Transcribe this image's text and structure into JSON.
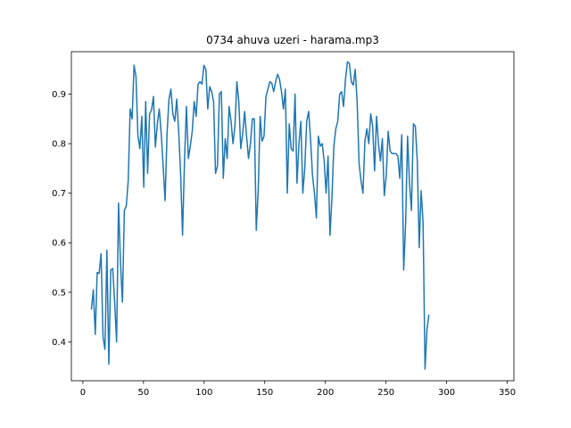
{
  "chart_data": {
    "type": "line",
    "title": "0734 ahuva uzeri - harama.mp3",
    "xlabel": "",
    "ylabel": "",
    "xlim": [
      -9.5,
      355.5
    ],
    "ylim": [
      0.3215,
      0.9855
    ],
    "x_ticks": [
      0,
      50,
      100,
      150,
      200,
      250,
      300,
      350
    ],
    "y_ticks": [
      0.4,
      0.5,
      0.6,
      0.7,
      0.8,
      0.9
    ],
    "grid": false,
    "line_color": "#1f77b4",
    "series": [
      {
        "x_start": 7,
        "x_step": 1.6,
        "values": [
          0.465,
          0.505,
          0.415,
          0.54,
          0.538,
          0.578,
          0.41,
          0.385,
          0.585,
          0.355,
          0.545,
          0.548,
          0.48,
          0.4,
          0.68,
          0.56,
          0.48,
          0.665,
          0.675,
          0.725,
          0.87,
          0.85,
          0.958,
          0.935,
          0.815,
          0.79,
          0.855,
          0.712,
          0.885,
          0.74,
          0.86,
          0.868,
          0.895,
          0.793,
          0.84,
          0.87,
          0.82,
          0.755,
          0.685,
          0.82,
          0.89,
          0.91,
          0.86,
          0.845,
          0.89,
          0.825,
          0.74,
          0.615,
          0.765,
          0.875,
          0.77,
          0.795,
          0.825,
          0.885,
          0.855,
          0.92,
          0.925,
          0.92,
          0.958,
          0.95,
          0.87,
          0.915,
          0.905,
          0.885,
          0.74,
          0.755,
          0.9,
          0.905,
          0.73,
          0.81,
          0.77,
          0.875,
          0.845,
          0.8,
          0.835,
          0.925,
          0.885,
          0.79,
          0.82,
          0.865,
          0.815,
          0.77,
          0.8,
          0.85,
          0.85,
          0.625,
          0.705,
          0.855,
          0.805,
          0.815,
          0.895,
          0.91,
          0.925,
          0.922,
          0.905,
          0.925,
          0.94,
          0.93,
          0.905,
          0.87,
          0.91,
          0.7,
          0.84,
          0.79,
          0.785,
          0.9,
          0.72,
          0.8,
          0.845,
          0.7,
          0.75,
          0.845,
          0.865,
          0.808,
          0.735,
          0.7,
          0.65,
          0.815,
          0.795,
          0.8,
          0.765,
          0.7,
          0.775,
          0.615,
          0.69,
          0.795,
          0.83,
          0.845,
          0.9,
          0.905,
          0.875,
          0.93,
          0.965,
          0.962,
          0.925,
          0.918,
          0.95,
          0.885,
          0.76,
          0.725,
          0.7,
          0.805,
          0.83,
          0.8,
          0.86,
          0.835,
          0.745,
          0.855,
          0.8,
          0.765,
          0.81,
          0.695,
          0.735,
          0.825,
          0.785,
          0.78,
          0.78,
          0.78,
          0.775,
          0.73,
          0.818,
          0.545,
          0.64,
          0.815,
          0.72,
          0.665,
          0.84,
          0.835,
          0.765,
          0.59,
          0.705,
          0.64,
          0.345,
          0.425,
          0.455
        ]
      }
    ]
  }
}
